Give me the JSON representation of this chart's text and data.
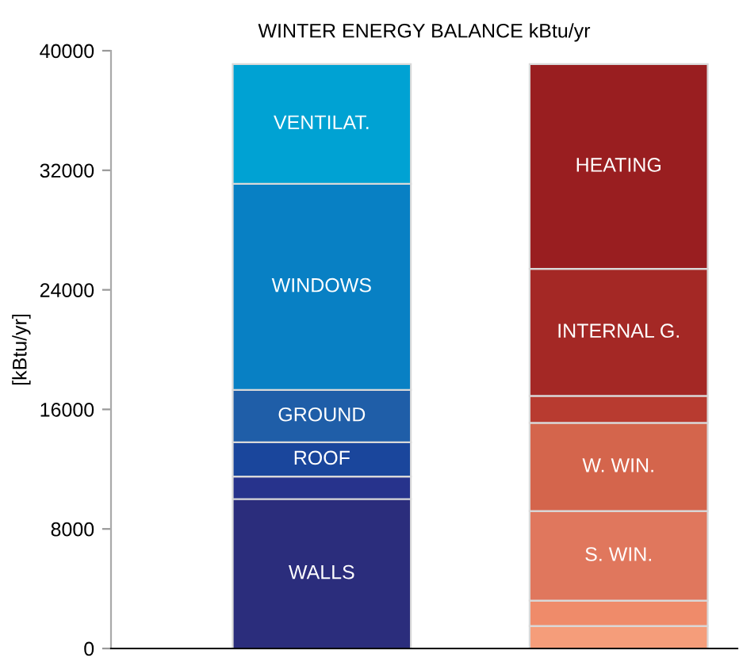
{
  "chart_data": {
    "type": "bar",
    "stacked": true,
    "title": "WINTER ENERGY BALANCE kBtu/yr",
    "ylabel": "[kBtu/yr]",
    "categories": [
      null,
      null
    ],
    "ylim": [
      0,
      40000
    ],
    "yticks": [
      0,
      8000,
      16000,
      24000,
      32000,
      40000
    ],
    "grid": false,
    "legend": false,
    "series": [
      {
        "name": "WALLS",
        "color": "#2b2d7c",
        "values": [
          10000,
          null
        ]
      },
      {
        "color": "#27338c",
        "values": [
          1500,
          null
        ]
      },
      {
        "name": "ROOF",
        "color": "#1a469c",
        "values": [
          2300,
          null
        ]
      },
      {
        "name": "GROUND",
        "color": "#1f5ea8",
        "values": [
          3500,
          null
        ]
      },
      {
        "name": "WINDOWS",
        "color": "#0880c4",
        "values": [
          13800,
          null
        ]
      },
      {
        "name": "VENTILAT.",
        "color": "#00a2d3",
        "values": [
          8000,
          null
        ]
      },
      {
        "color": "#f59d7a",
        "values": [
          null,
          1500
        ]
      },
      {
        "color": "#ef8b6a",
        "values": [
          null,
          1700
        ]
      },
      {
        "name": "S. WIN.",
        "color": "#e0775d",
        "values": [
          null,
          6000
        ]
      },
      {
        "name": "W. WIN.",
        "color": "#d4654c",
        "values": [
          null,
          5900
        ]
      },
      {
        "color": "#b83b30",
        "values": [
          null,
          1800
        ]
      },
      {
        "name": "INTERNAL G.",
        "color": "#a42825",
        "values": [
          null,
          8500
        ]
      },
      {
        "name": "HEATING",
        "color": "#991e20",
        "values": [
          null,
          13700
        ]
      }
    ]
  }
}
